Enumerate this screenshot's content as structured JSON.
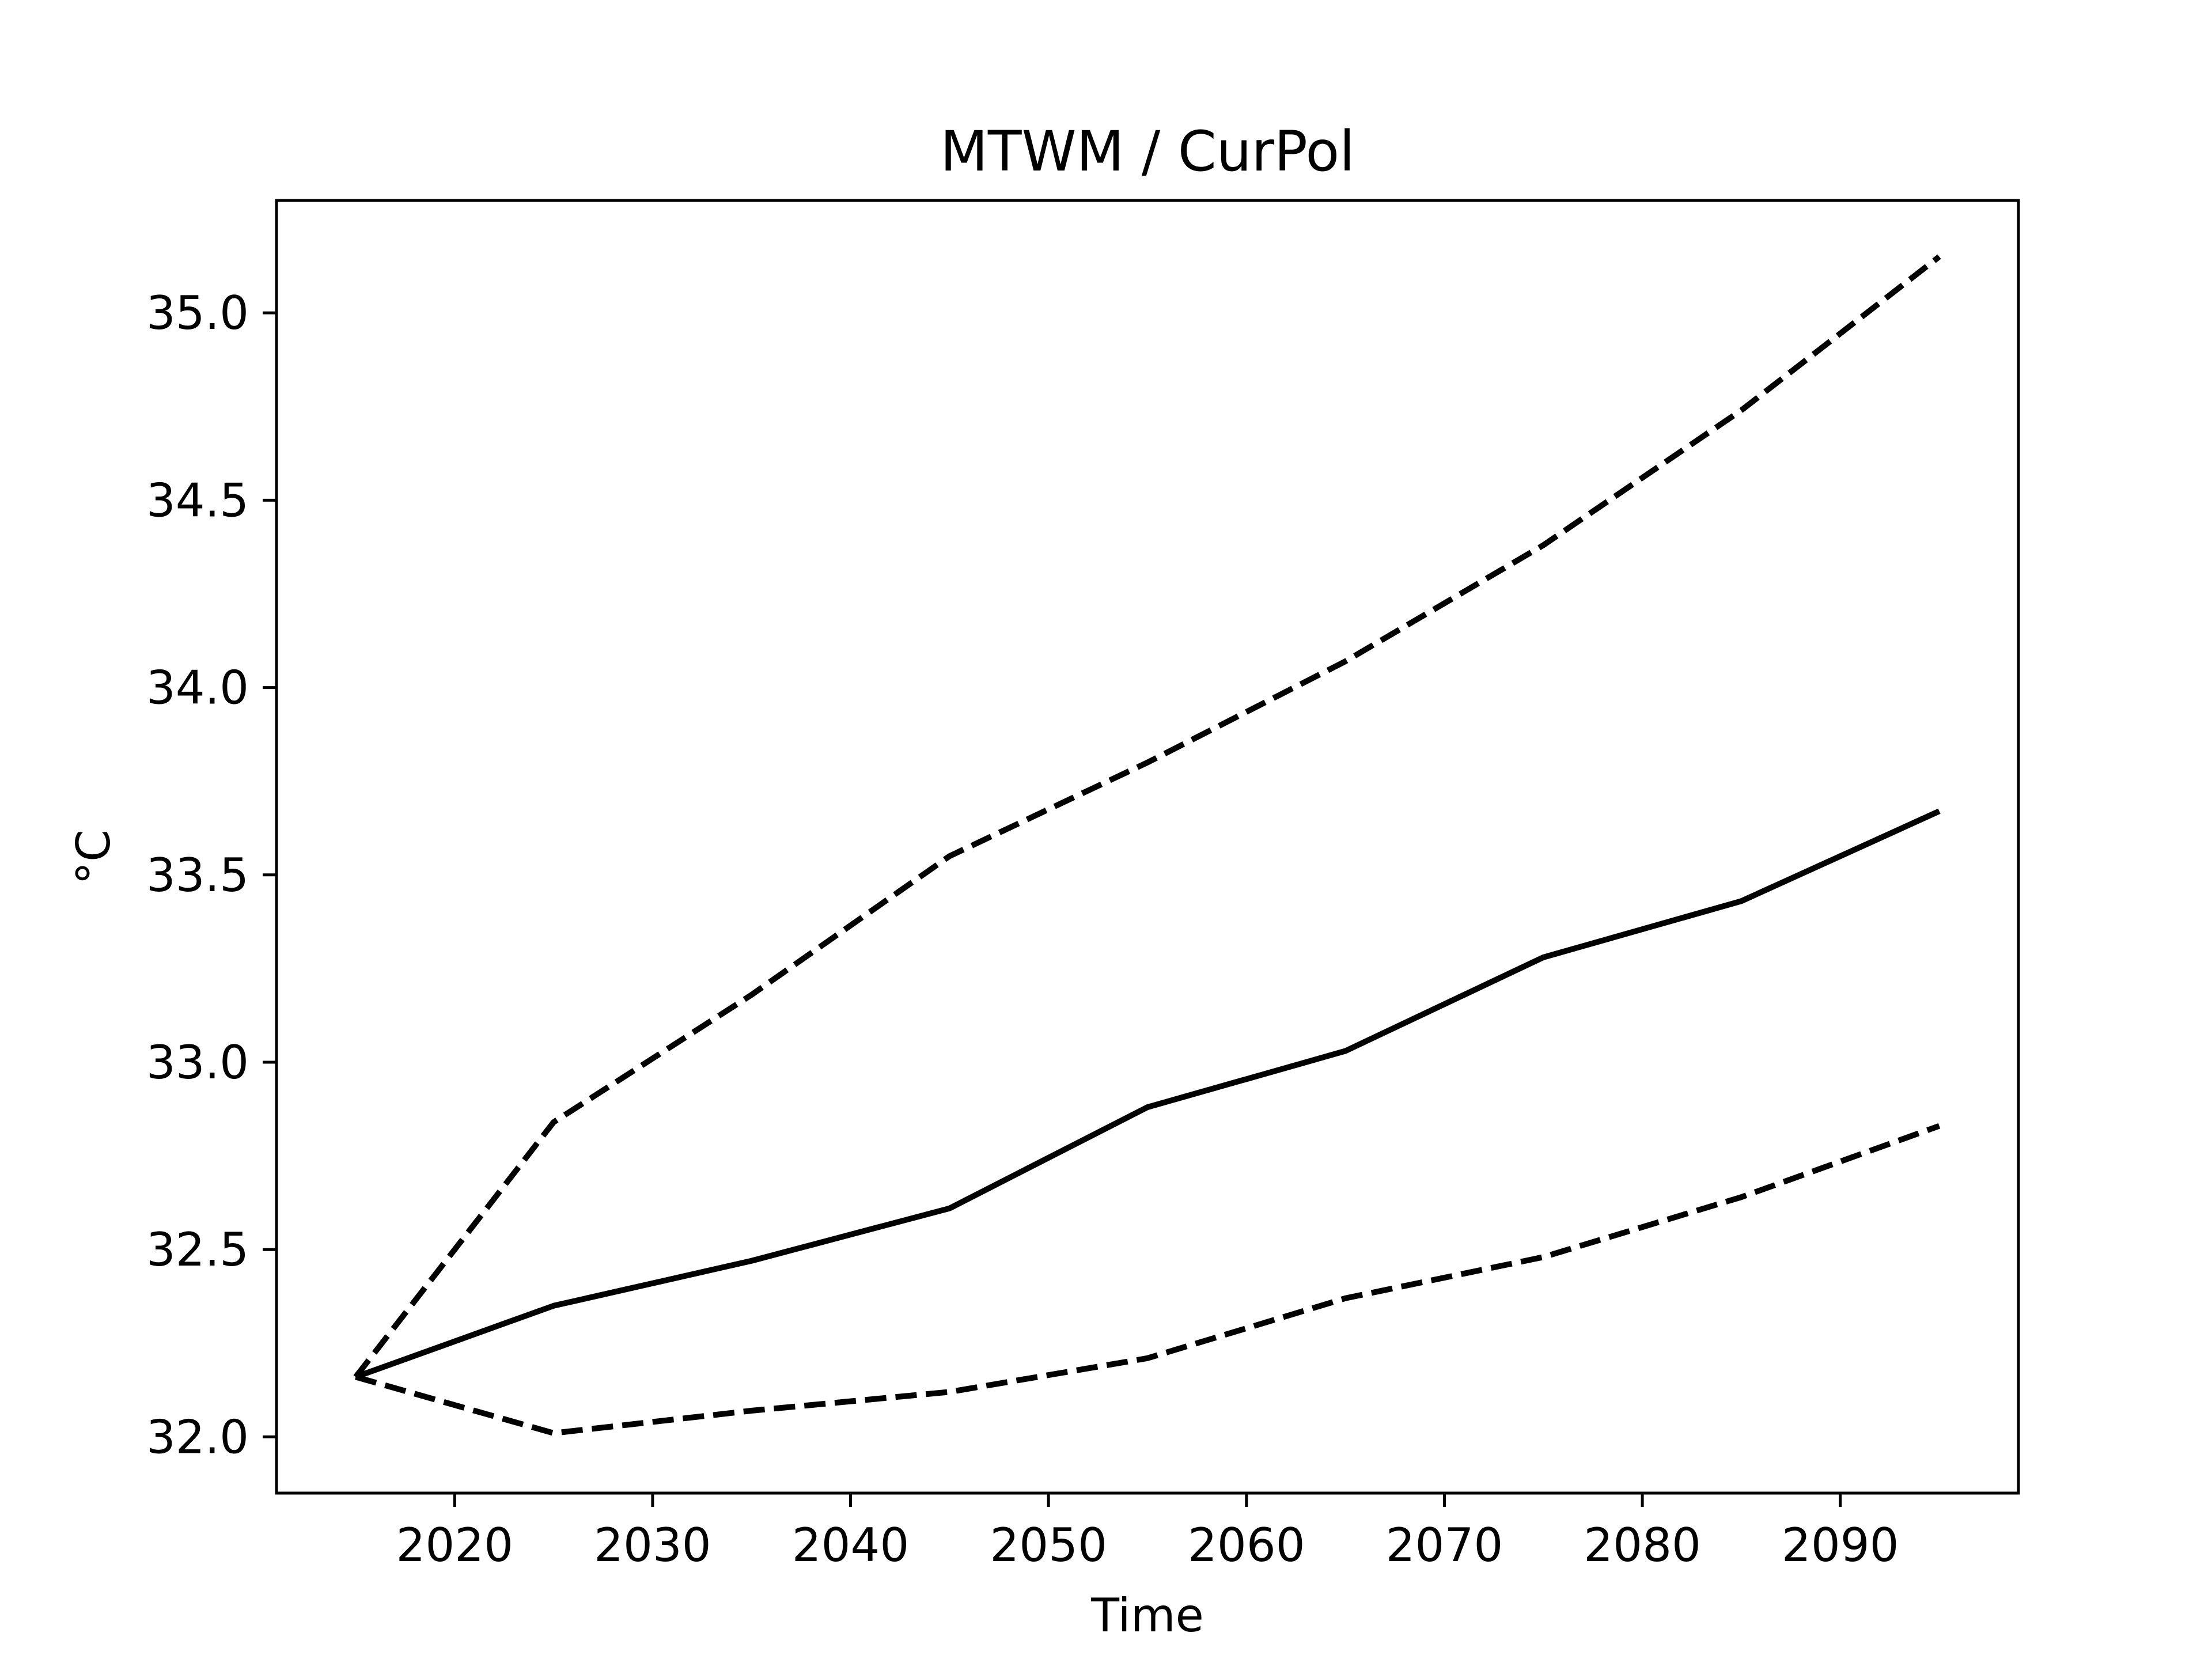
{
  "chart_data": {
    "type": "line",
    "title": "MTWM / CurPol",
    "xlabel": "Time",
    "ylabel": "°C",
    "x": [
      2015,
      2025,
      2035,
      2045,
      2055,
      2065,
      2075,
      2085,
      2095
    ],
    "series": [
      {
        "style": "solid",
        "values": [
          32.16,
          32.35,
          32.47,
          32.61,
          32.88,
          33.03,
          33.28,
          33.43,
          33.67
        ]
      },
      {
        "style": "dashed",
        "values": [
          32.16,
          32.84,
          33.18,
          33.55,
          33.8,
          34.07,
          34.38,
          34.74,
          35.15
        ]
      },
      {
        "style": "dashed",
        "values": [
          32.16,
          32.01,
          32.07,
          32.12,
          32.21,
          32.37,
          32.48,
          32.64,
          32.83
        ]
      }
    ],
    "xlim": [
      2011,
      2099
    ],
    "ylim": [
      31.85,
      35.3
    ],
    "xticks": [
      2020,
      2030,
      2040,
      2050,
      2060,
      2070,
      2080,
      2090
    ],
    "yticks": [
      32.0,
      32.5,
      33.0,
      33.5,
      34.0,
      34.5,
      35.0
    ],
    "ytick_labels": [
      "32.0",
      "32.5",
      "33.0",
      "33.5",
      "34.0",
      "34.5",
      "35.0"
    ],
    "grid": false,
    "line_color": "#000000"
  }
}
